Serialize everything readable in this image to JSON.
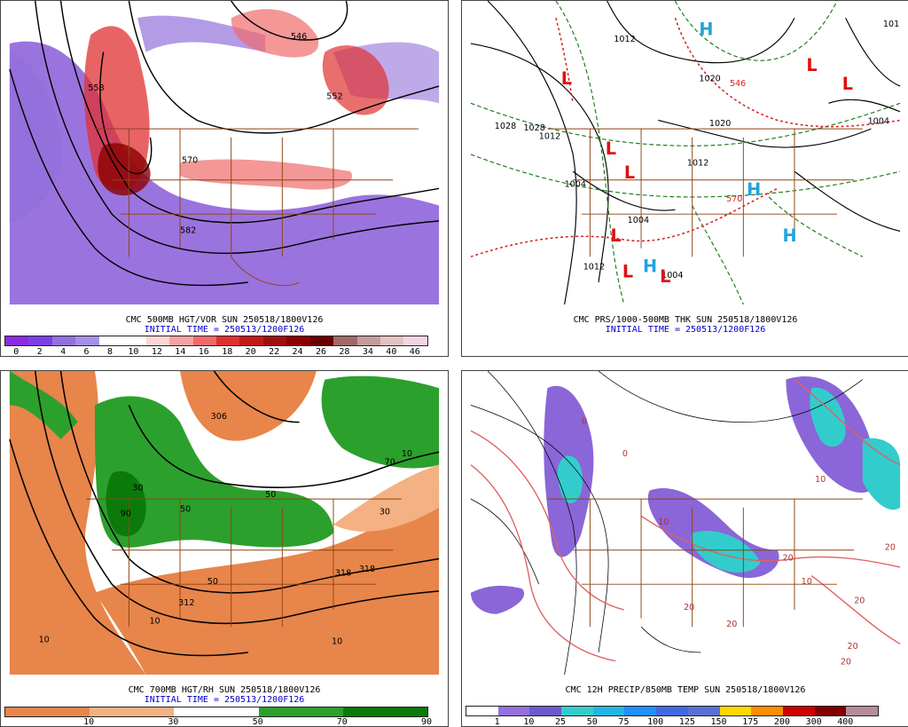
{
  "panels": {
    "p1": {
      "title": "CMC 500MB HGT/VOR SUN 250518/1800V126",
      "init": "INITIAL TIME = 250513/1200F126",
      "labels": [
        "546",
        "552",
        "558",
        "570",
        "582"
      ],
      "colorbar": {
        "colors": [
          "#8a2be2",
          "#7b3fe4",
          "#9370db",
          "#a58fe8",
          "#ffffff",
          "#ffffff",
          "#ffd6d6",
          "#f4a3a3",
          "#ef6b6b",
          "#e03030",
          "#c21a1a",
          "#a01010",
          "#8b0000",
          "#6b0000",
          "#a06a6a",
          "#c49c9c",
          "#e2c2c2",
          "#f5d5e5"
        ],
        "ticks": [
          "0",
          "2",
          "4",
          "6",
          "8",
          "10",
          "12",
          "14",
          "16",
          "18",
          "20",
          "22",
          "24",
          "26",
          "28",
          "34",
          "40",
          "46"
        ]
      }
    },
    "p2": {
      "title": "CMC PRS/1000-500MB THK SUN 250518/1800V126",
      "init": "INITIAL TIME = 250513/1200F126",
      "labels": [
        "1012",
        "1028",
        "1028",
        "1020",
        "1012",
        "1004",
        "1020",
        "1012",
        "1004",
        "1012",
        "1004",
        "1004",
        "101",
        "546",
        "570"
      ],
      "highs": [
        "H",
        "H",
        "H",
        "H"
      ],
      "lows": [
        "L",
        "L",
        "L",
        "L",
        "L",
        "L",
        "L",
        "L"
      ]
    },
    "p3": {
      "title": "CMC 700MB HGT/RH SUN 250518/1800V126",
      "init": "INITIAL TIME = 250513/1200F126",
      "labels": [
        "306",
        "312",
        "318",
        "318",
        "10",
        "10",
        "30",
        "50",
        "90",
        "50",
        "70",
        "10",
        "30",
        "10",
        "50"
      ],
      "colorbar": {
        "colors": [
          "#e8854a",
          "#e8854a",
          "#f4b183",
          "#f4b183",
          "#ffffff",
          "#ffffff",
          "#2ca02c",
          "#2ca02c",
          "#0b7a0b",
          "#0b7a0b"
        ],
        "ticks": [
          "10",
          "30",
          "50",
          "70",
          "90"
        ]
      }
    },
    "p4": {
      "title": "CMC 12H PRECIP/850MB TEMP SUN 250518/1800V126",
      "labels": [
        "0",
        "10",
        "20",
        "20",
        "20",
        "10",
        "0",
        "10",
        "20",
        "20",
        "20",
        "20"
      ],
      "colorbar": {
        "colors": [
          "#ffffff",
          "#9370db",
          "#6a5acd",
          "#33cccc",
          "#22b5e6",
          "#1e90ff",
          "#4169e1",
          "#5a6fd6",
          "#ffd700",
          "#ff8c00",
          "#cc0000",
          "#800000",
          "#b48c9a"
        ],
        "ticks": [
          "1",
          "10",
          "25",
          "50",
          "75",
          "100",
          "125",
          "150",
          "175",
          "200",
          "300",
          "400"
        ]
      }
    }
  }
}
